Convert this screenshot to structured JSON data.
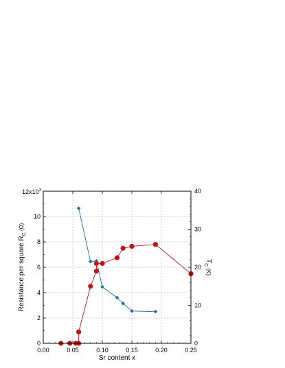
{
  "chart_data": {
    "type": "scatter",
    "title": "",
    "xlabel": "Sr content x",
    "ylabel_left": {
      "main": "Resistance per square R",
      "sub": "C",
      "unit": " (Ω)"
    },
    "ylabel_right": {
      "main": "T",
      "sub": "C",
      "unit": " (K)"
    },
    "xlim": [
      0.0,
      0.25
    ],
    "ylim_left": [
      0,
      12000
    ],
    "ylim_right": [
      0,
      40
    ],
    "grid": true,
    "x_ticks": [
      "0.00",
      "0.05",
      "0.10",
      "0.15",
      "0.20",
      "0.25"
    ],
    "y_left_ticks": [
      "0",
      "2",
      "4",
      "6",
      "8",
      "10"
    ],
    "y_left_top_label": {
      "base": "12x10",
      "exp": "3"
    },
    "y_right_ticks": [
      "0",
      "10",
      "20",
      "30",
      "40"
    ],
    "series": [
      {
        "axis": "left",
        "color": "#1f6fa0",
        "marker": "diamond",
        "points": [
          [
            0.06,
            10650
          ],
          [
            0.08,
            6450
          ],
          [
            0.09,
            6500
          ],
          [
            0.1,
            4450
          ],
          [
            0.125,
            3600
          ],
          [
            0.135,
            3150
          ],
          [
            0.15,
            2550
          ],
          [
            0.19,
            2500
          ]
        ]
      },
      {
        "axis": "right",
        "color": "#c21414",
        "marker": "circle",
        "points": [
          [
            0.03,
            0.0
          ],
          [
            0.045,
            0.0
          ],
          [
            0.055,
            0.0
          ],
          [
            0.06,
            0.0
          ],
          [
            0.06,
            3.0
          ],
          [
            0.08,
            15.0
          ],
          [
            0.09,
            19.0
          ],
          [
            0.09,
            21.0
          ],
          [
            0.1,
            21.0
          ],
          [
            0.125,
            22.5
          ],
          [
            0.135,
            25.0
          ],
          [
            0.15,
            25.5
          ],
          [
            0.19,
            26.0
          ],
          [
            0.25,
            18.3
          ]
        ]
      }
    ]
  }
}
